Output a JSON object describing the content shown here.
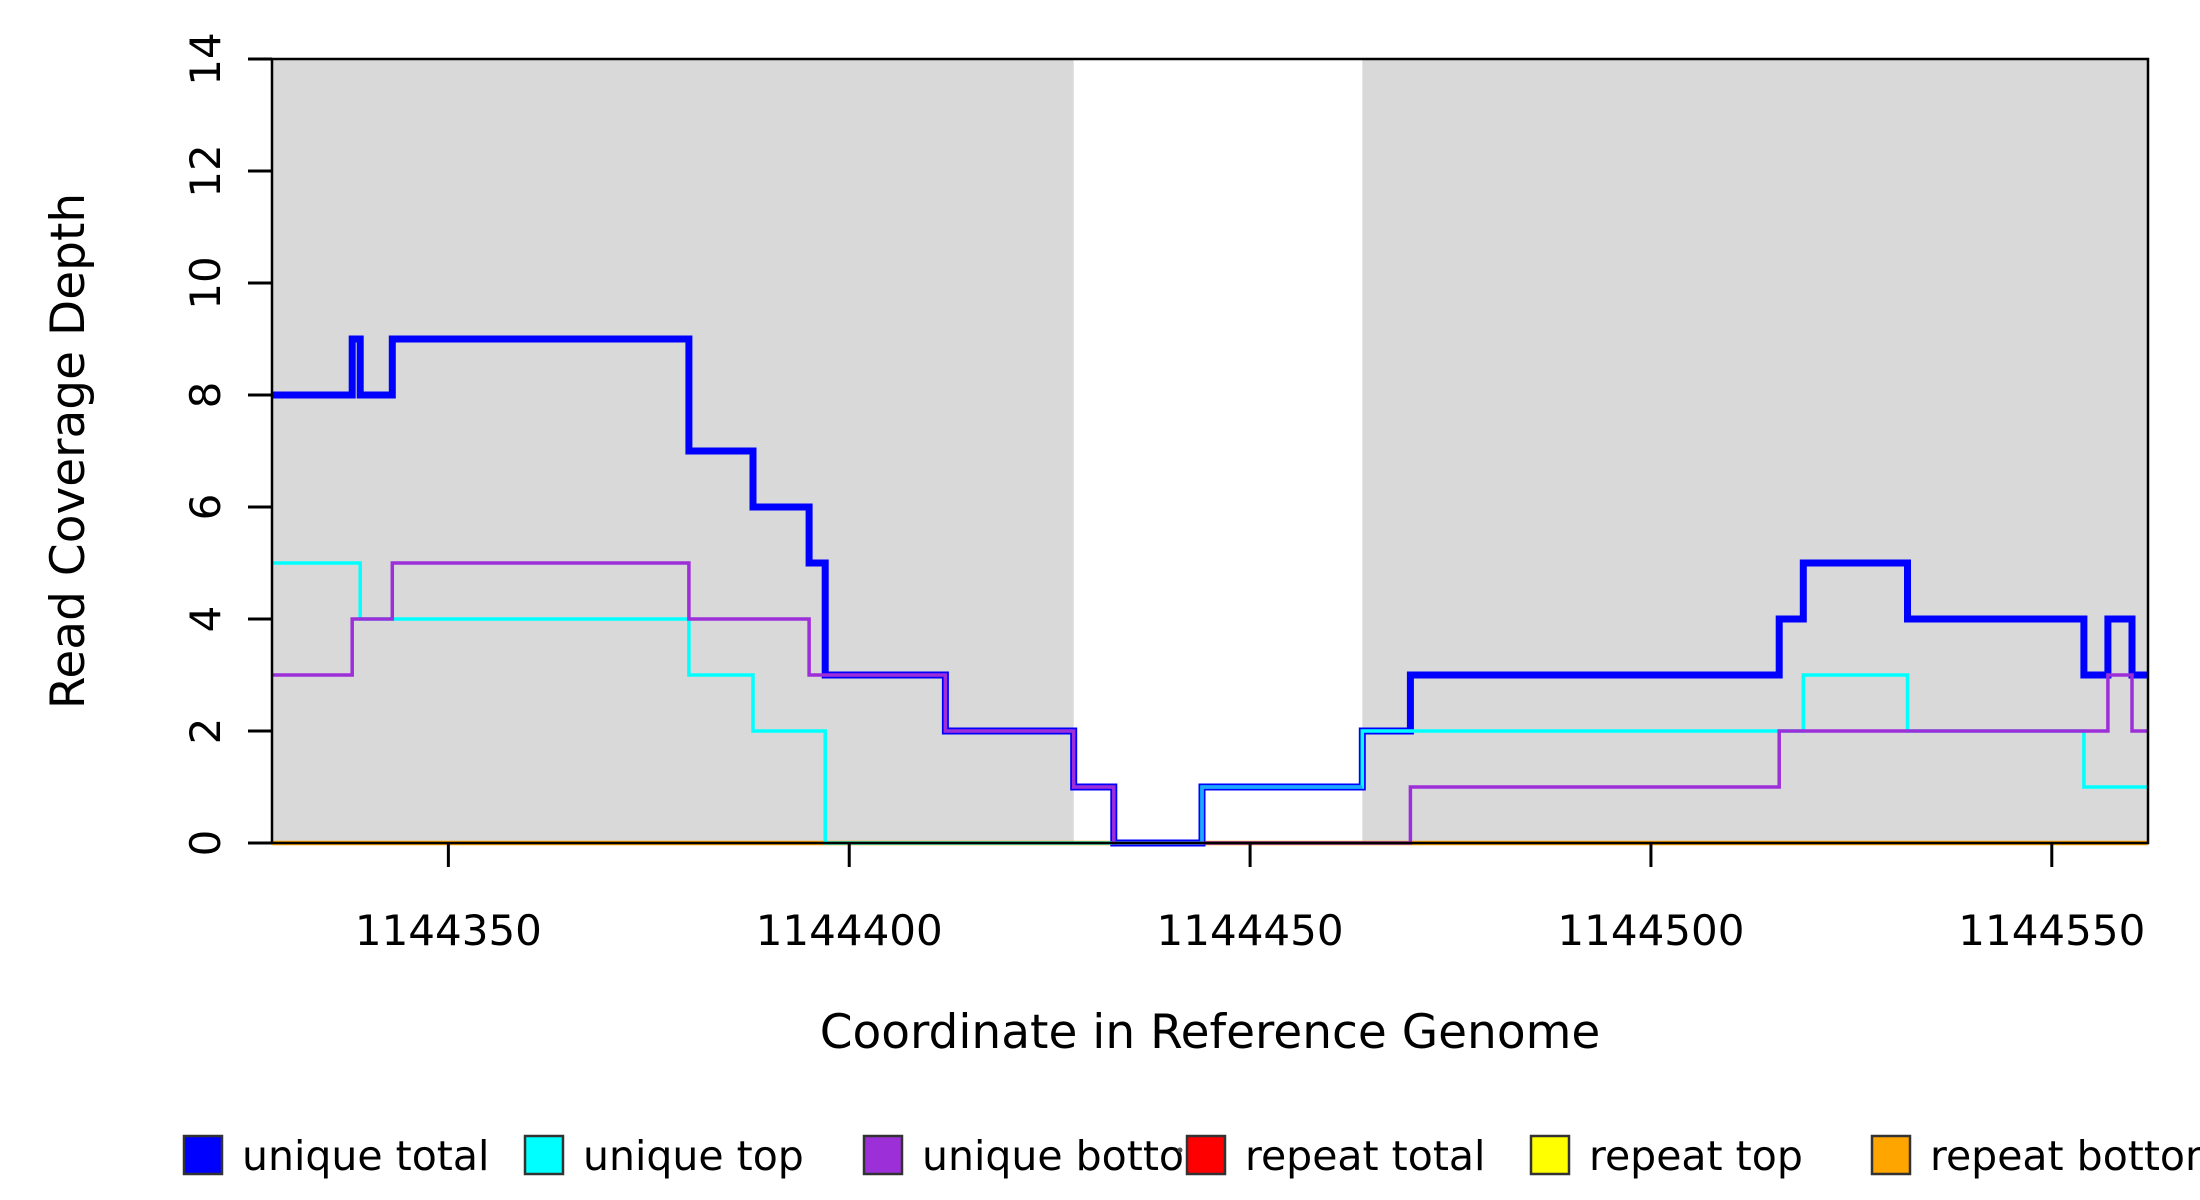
{
  "chart_data": {
    "type": "line",
    "step": true,
    "title": "",
    "xlabel": "Coordinate in Reference Genome",
    "ylabel": "Read Coverage Depth",
    "xlim": [
      1144328,
      1144562
    ],
    "ylim": [
      0,
      14
    ],
    "xticks": [
      1144350,
      1144400,
      1144450,
      1144500,
      1144550
    ],
    "yticks": [
      0,
      2,
      4,
      6,
      8,
      10,
      12,
      14
    ],
    "grid": false,
    "legend_position": "bottom",
    "panel_background": "#FFFFFF",
    "shaded_regions": [
      {
        "name": "gray-region-left",
        "x0": 1144328,
        "x1": 1144428,
        "color": "#D9D9D9"
      },
      {
        "name": "gray-region-right",
        "x0": 1144464,
        "x1": 1144562,
        "color": "#D9D9D9"
      }
    ],
    "draw_order": [
      "repeat total",
      "repeat top",
      "repeat bottom",
      "unique total",
      "unique top",
      "unique bottom"
    ],
    "series": [
      {
        "name": "unique total",
        "color": "#0000FF",
        "width": 7,
        "breakpoints": [
          [
            1144328,
            8
          ],
          [
            1144338,
            9
          ],
          [
            1144339,
            8
          ],
          [
            1144343,
            9
          ],
          [
            1144380,
            7
          ],
          [
            1144388,
            6
          ],
          [
            1144395,
            5
          ],
          [
            1144397,
            3
          ],
          [
            1144412,
            2
          ],
          [
            1144428,
            1
          ],
          [
            1144433,
            0
          ],
          [
            1144444,
            1
          ],
          [
            1144464,
            2
          ],
          [
            1144470,
            3
          ],
          [
            1144516,
            4
          ],
          [
            1144519,
            5
          ],
          [
            1144532,
            4
          ],
          [
            1144554,
            3
          ],
          [
            1144557,
            4
          ],
          [
            1144560,
            3
          ]
        ],
        "x_end": 1144562
      },
      {
        "name": "unique top",
        "color": "#00FFFF",
        "width": 3.5,
        "breakpoints": [
          [
            1144328,
            5
          ],
          [
            1144339,
            4
          ],
          [
            1144380,
            3
          ],
          [
            1144388,
            2
          ],
          [
            1144397,
            0
          ],
          [
            1144444,
            1
          ],
          [
            1144464,
            2
          ],
          [
            1144519,
            3
          ],
          [
            1144532,
            2
          ],
          [
            1144554,
            1
          ]
        ],
        "x_end": 1144562
      },
      {
        "name": "unique bottom",
        "color": "#9D2FD9",
        "width": 3.5,
        "breakpoints": [
          [
            1144328,
            3
          ],
          [
            1144338,
            4
          ],
          [
            1144343,
            5
          ],
          [
            1144380,
            4
          ],
          [
            1144395,
            3
          ],
          [
            1144412,
            2
          ],
          [
            1144428,
            1
          ],
          [
            1144433,
            0
          ],
          [
            1144470,
            1
          ],
          [
            1144516,
            2
          ],
          [
            1144557,
            3
          ],
          [
            1144560,
            2
          ]
        ],
        "x_end": 1144562
      },
      {
        "name": "repeat total",
        "color": "#FF0000",
        "width": 3.5,
        "breakpoints": [
          [
            1144328,
            0
          ]
        ],
        "x_end": 1144562
      },
      {
        "name": "repeat top",
        "color": "#FFFF00",
        "width": 3.5,
        "breakpoints": [
          [
            1144328,
            0
          ]
        ],
        "x_end": 1144562
      },
      {
        "name": "repeat bottom",
        "color": "#FFA500",
        "width": 4.5,
        "breakpoints": [
          [
            1144328,
            0
          ]
        ],
        "x_end": 1144562
      }
    ],
    "gap_highlight": {
      "x0": 1144433,
      "x1": 1144464,
      "series": "unique total"
    }
  },
  "legend": {
    "items": [
      {
        "label": "unique total",
        "color": "#0000FF"
      },
      {
        "label": "unique top",
        "color": "#00FFFF"
      },
      {
        "label": "unique bottom",
        "color": "#9D2FD9"
      },
      {
        "label": "repeat total",
        "color": "#FF0000"
      },
      {
        "label": "repeat top",
        "color": "#FFFF00"
      },
      {
        "label": "repeat bottom",
        "color": "#FFA500"
      }
    ]
  },
  "artifact_dot": {
    "present": true,
    "color": "#555555"
  }
}
